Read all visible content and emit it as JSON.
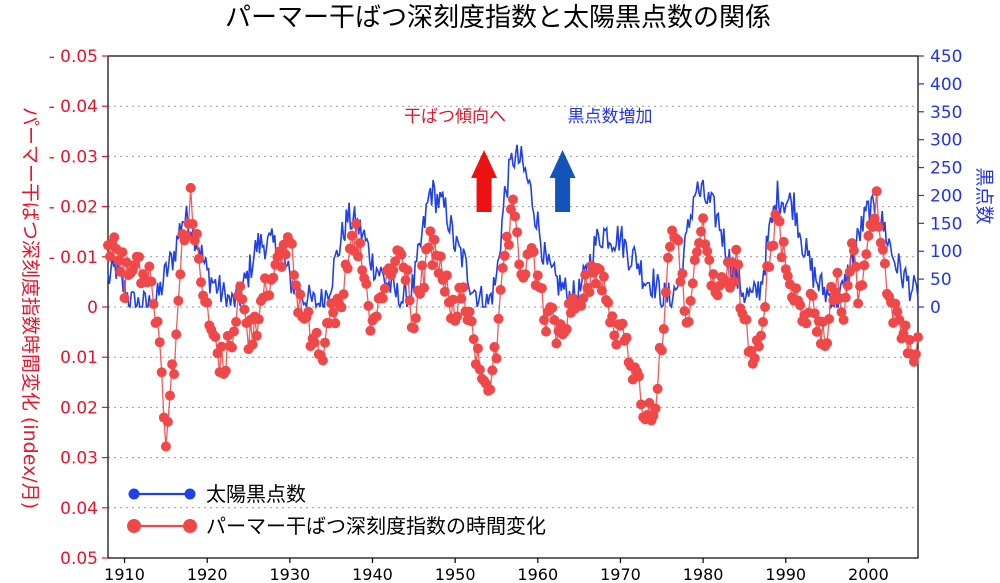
{
  "chart_data": {
    "type": "line",
    "title": "パーマー干ばつ深刻度指数と太陽黒点数の関係",
    "ylabel_left": "パーマー干ばつ深刻度指数時間変化 (index/月)",
    "ylabel_right": "黒点数",
    "x_range": [
      1908,
      2006
    ],
    "x_ticks": [
      "1910",
      "1920",
      "1930",
      "1940",
      "1950",
      "1960",
      "1970",
      "1980",
      "1990",
      "2000"
    ],
    "y_left_range_top_to_bottom": [
      -0.05,
      0.05
    ],
    "y_left_ticks": [
      "- 0.05",
      "- 0.04",
      "- 0.03",
      "- 0.02",
      "- 0.01",
      "0",
      "0.01",
      "0.02",
      "0.03",
      "0.04",
      "0.05"
    ],
    "y_right_range": [
      0,
      450
    ],
    "y_right_ticks": [
      "450",
      "400",
      "350",
      "300",
      "250",
      "200",
      "150",
      "100",
      "50",
      "0"
    ],
    "grid": "horizontal dotted",
    "legend_position": "bottom-left",
    "annotations": [
      {
        "text": "干ばつ傾向へ",
        "color": "#e8142b",
        "arrow": "up",
        "arrow_color": "#ee1111",
        "x": 1953.5
      },
      {
        "text": "黒点数増加",
        "color": "#2233ee",
        "arrow": "up",
        "arrow_color": "#1155bb",
        "x": 1963
      }
    ],
    "series": [
      {
        "name": "太陽黒点数",
        "axis": "right",
        "color": "#2040e8",
        "points": [
          [
            1908,
            50
          ],
          [
            1909,
            70
          ],
          [
            1910,
            30
          ],
          [
            1911,
            5
          ],
          [
            1912,
            3
          ],
          [
            1913,
            2
          ],
          [
            1914,
            15
          ],
          [
            1915,
            60
          ],
          [
            1916,
            95
          ],
          [
            1917,
            160
          ],
          [
            1918,
            150
          ],
          [
            1919,
            110
          ],
          [
            1920,
            60
          ],
          [
            1921,
            40
          ],
          [
            1922,
            20
          ],
          [
            1923,
            6
          ],
          [
            1924,
            20
          ],
          [
            1925,
            60
          ],
          [
            1926,
            110
          ],
          [
            1927,
            115
          ],
          [
            1928,
            110
          ],
          [
            1929,
            95
          ],
          [
            1930,
            50
          ],
          [
            1931,
            30
          ],
          [
            1932,
            15
          ],
          [
            1933,
            5
          ],
          [
            1934,
            10
          ],
          [
            1935,
            50
          ],
          [
            1936,
            110
          ],
          [
            1937,
            160
          ],
          [
            1938,
            150
          ],
          [
            1939,
            125
          ],
          [
            1940,
            80
          ],
          [
            1941,
            60
          ],
          [
            1942,
            40
          ],
          [
            1943,
            20
          ],
          [
            1944,
            10
          ],
          [
            1945,
            40
          ],
          [
            1946,
            125
          ],
          [
            1947,
            210
          ],
          [
            1948,
            190
          ],
          [
            1949,
            170
          ],
          [
            1950,
            110
          ],
          [
            1951,
            85
          ],
          [
            1952,
            40
          ],
          [
            1953,
            15
          ],
          [
            1954,
            5
          ],
          [
            1955,
            50
          ],
          [
            1956,
            200
          ],
          [
            1957,
            270
          ],
          [
            1958,
            260
          ],
          [
            1959,
            215
          ],
          [
            1960,
            150
          ],
          [
            1961,
            75
          ],
          [
            1962,
            50
          ],
          [
            1963,
            35
          ],
          [
            1964,
            15
          ],
          [
            1965,
            25
          ],
          [
            1966,
            65
          ],
          [
            1967,
            115
          ],
          [
            1968,
            135
          ],
          [
            1969,
            125
          ],
          [
            1970,
            125
          ],
          [
            1971,
            95
          ],
          [
            1972,
            85
          ],
          [
            1973,
            50
          ],
          [
            1974,
            45
          ],
          [
            1975,
            20
          ],
          [
            1976,
            15
          ],
          [
            1977,
            40
          ],
          [
            1978,
            120
          ],
          [
            1979,
            210
          ],
          [
            1980,
            200
          ],
          [
            1981,
            180
          ],
          [
            1982,
            150
          ],
          [
            1983,
            90
          ],
          [
            1984,
            55
          ],
          [
            1985,
            25
          ],
          [
            1986,
            15
          ],
          [
            1987,
            40
          ],
          [
            1988,
            130
          ],
          [
            1989,
            200
          ],
          [
            1990,
            190
          ],
          [
            1991,
            185
          ],
          [
            1992,
            120
          ],
          [
            1993,
            70
          ],
          [
            1994,
            40
          ],
          [
            1995,
            25
          ],
          [
            1996,
            10
          ],
          [
            1997,
            30
          ],
          [
            1998,
            85
          ],
          [
            1999,
            135
          ],
          [
            2000,
            175
          ],
          [
            2001,
            165
          ],
          [
            2002,
            140
          ],
          [
            2003,
            90
          ],
          [
            2004,
            60
          ],
          [
            2005,
            40
          ],
          [
            2006,
            15
          ]
        ]
      },
      {
        "name": "パーマー干ばつ深刻度指数の時間変化",
        "axis": "left",
        "color": "#f04848",
        "points": [
          [
            1908,
            -0.01
          ],
          [
            1909,
            -0.015
          ],
          [
            1910,
            -0.005
          ],
          [
            1911,
            -0.01
          ],
          [
            1912,
            -0.008
          ],
          [
            1913,
            -0.006
          ],
          [
            1914,
            0.002
          ],
          [
            1915,
            0.025
          ],
          [
            1916,
            0.01
          ],
          [
            1917,
            -0.012
          ],
          [
            1918,
            -0.022
          ],
          [
            1919,
            -0.008
          ],
          [
            1920,
            0.002
          ],
          [
            1921,
            0.008
          ],
          [
            1922,
            0.012
          ],
          [
            1923,
            0.005
          ],
          [
            1924,
            -0.003
          ],
          [
            1925,
            0.006
          ],
          [
            1926,
            0.003
          ],
          [
            1927,
            -0.006
          ],
          [
            1928,
            -0.004
          ],
          [
            1929,
            -0.01
          ],
          [
            1930,
            -0.014
          ],
          [
            1931,
            -0.002
          ],
          [
            1932,
            0.004
          ],
          [
            1933,
            0.005
          ],
          [
            1934,
            0.008
          ],
          [
            1935,
            -0.002
          ],
          [
            1936,
            0.003
          ],
          [
            1937,
            -0.008
          ],
          [
            1938,
            -0.015
          ],
          [
            1939,
            -0.005
          ],
          [
            1940,
            0.006
          ],
          [
            1941,
            -0.002
          ],
          [
            1942,
            -0.006
          ],
          [
            1943,
            -0.01
          ],
          [
            1944,
            -0.008
          ],
          [
            1945,
            0.004
          ],
          [
            1946,
            -0.005
          ],
          [
            1947,
            -0.012
          ],
          [
            1948,
            -0.008
          ],
          [
            1949,
            -0.004
          ],
          [
            1950,
            0.003
          ],
          [
            1951,
            -0.004
          ],
          [
            1952,
            0.006
          ],
          [
            1953,
            0.012
          ],
          [
            1954,
            0.015
          ],
          [
            1955,
            0.01
          ],
          [
            1956,
            -0.01
          ],
          [
            1957,
            -0.018
          ],
          [
            1958,
            -0.006
          ],
          [
            1959,
            -0.012
          ],
          [
            1960,
            -0.004
          ],
          [
            1961,
            0.002
          ],
          [
            1962,
            0.004
          ],
          [
            1963,
            0.006
          ],
          [
            1964,
            -0.002
          ],
          [
            1965,
            0.002
          ],
          [
            1966,
            -0.005
          ],
          [
            1967,
            -0.008
          ],
          [
            1968,
            -0.004
          ],
          [
            1969,
            0.004
          ],
          [
            1970,
            0.006
          ],
          [
            1971,
            0.008
          ],
          [
            1972,
            0.015
          ],
          [
            1973,
            0.02
          ],
          [
            1974,
            0.022
          ],
          [
            1975,
            0.008
          ],
          [
            1976,
            -0.015
          ],
          [
            1977,
            -0.01
          ],
          [
            1978,
            0.002
          ],
          [
            1979,
            -0.006
          ],
          [
            1980,
            -0.015
          ],
          [
            1981,
            -0.006
          ],
          [
            1982,
            -0.002
          ],
          [
            1983,
            -0.006
          ],
          [
            1984,
            -0.008
          ],
          [
            1985,
            0.003
          ],
          [
            1986,
            0.008
          ],
          [
            1987,
            0.004
          ],
          [
            1988,
            -0.008
          ],
          [
            1989,
            -0.018
          ],
          [
            1990,
            -0.008
          ],
          [
            1991,
            -0.004
          ],
          [
            1992,
            0.002
          ],
          [
            1993,
            -0.002
          ],
          [
            1994,
            0.006
          ],
          [
            1995,
            0.004
          ],
          [
            1996,
            -0.006
          ],
          [
            1997,
            0.002
          ],
          [
            1998,
            -0.01
          ],
          [
            1999,
            -0.002
          ],
          [
            2000,
            -0.015
          ],
          [
            2001,
            -0.02
          ],
          [
            2002,
            -0.008
          ],
          [
            2003,
            0.002
          ],
          [
            2004,
            0.004
          ],
          [
            2005,
            0.01
          ],
          [
            2006,
            0.006
          ]
        ]
      }
    ]
  }
}
